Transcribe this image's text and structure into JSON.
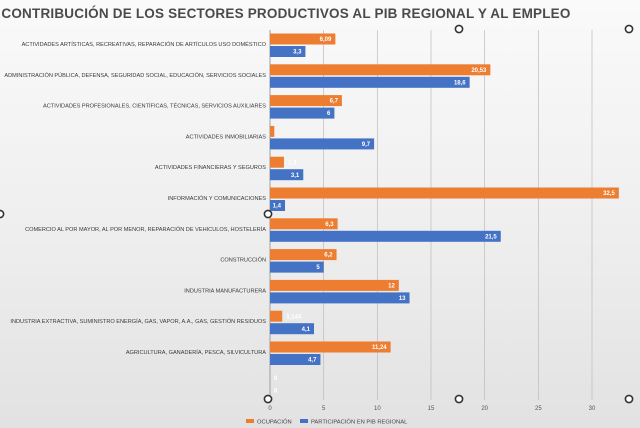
{
  "chart_data": {
    "type": "bar",
    "orientation": "horizontal",
    "title": "CONTRIBUCIÓN DE LOS SECTORES PRODUCTIVOS AL PIB REGIONAL Y AL EMPLEO",
    "categories": [
      "ACTIVIDADES ARTÍSTICAS, RECREATIVAS, REPARACIÓN DE ARTÍCULOS USO DOMÉSTICO",
      "ADMINISTRACIÓN PÚBLICA, DEFENSA, SEGURIDAD SOCIAL, EDUCACIÓN, SERVICIOS SOCIALES",
      "ACTIVIDADES PROFESIONALES, CIENTÍFICAS, TÉCNICAS, SERVICIOS AUXILIARES",
      "ACTIVIDADES INMOBILIARIAS",
      "ACTIVIDADES FINANCIERAS Y SEGUROS",
      "INFORMACIÓN Y COMUNICACIONES",
      "COMERCIO AL POR MAYOR, AL POR MENOR, REPARACIÓN  DE VEHICULOS, HOSTELERÍA",
      "CONSTRUCCIÓN",
      "INDUSTRIA MANUFACTURERA",
      "INDUSTRIA EXTRACTIVA, SUMINISTRO ENERGÍA, GAS, VAPOR, A.A., GAS, GESTIÓN RESIDUOS",
      "AGRICULTURA, GANADERÍA, PESCA, SILVICULTURA",
      ""
    ],
    "series": [
      {
        "name": "OCUPACIÓN",
        "color": "#ED7D31",
        "values": [
          6.09,
          20.53,
          6.7,
          0.4,
          1.3,
          32.5,
          6.3,
          6.2,
          12,
          1.14,
          11.24,
          0
        ],
        "labels": [
          "6,09",
          "20,53",
          "6,7",
          "",
          "1,3",
          "32,5",
          "6,3",
          "6,2",
          "12",
          "1,144",
          "11,24",
          "0"
        ]
      },
      {
        "name": "PARTICIPACIÓN EN PIB REGIONAL",
        "color": "#4472C4",
        "values": [
          3.3,
          18.6,
          6,
          9.7,
          3.1,
          1.4,
          21.5,
          5,
          13,
          4.1,
          4.7,
          0
        ],
        "labels": [
          "3,3",
          "18,6",
          "6",
          "9,7",
          "3,1",
          "1,4",
          "21,5",
          "5",
          "13",
          "4,1",
          "4,7",
          "0"
        ]
      }
    ],
    "x_ticks": [
      0,
      5,
      10,
      15,
      20,
      25,
      30
    ],
    "xlim": [
      0,
      33
    ],
    "grid": true,
    "legend_position": "bottom"
  }
}
